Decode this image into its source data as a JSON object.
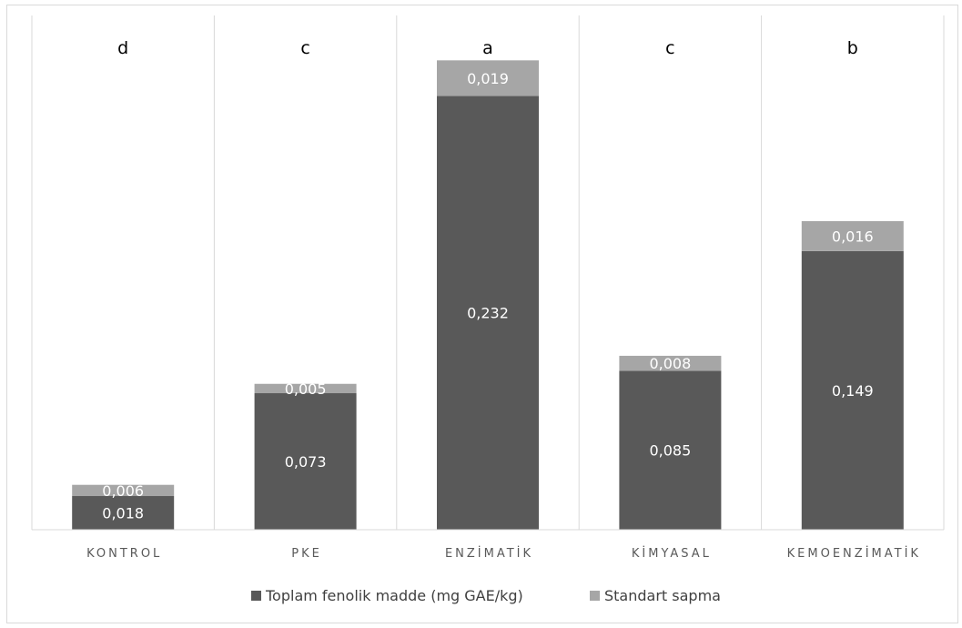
{
  "chart_data": {
    "type": "bar",
    "stacked": true,
    "categories": [
      "KONTROL",
      "PKE",
      "ENZİMATİK",
      "KİMYASAL",
      "KEMOENZİMATİK"
    ],
    "group_letters": [
      "d",
      "c",
      "a",
      "c",
      "b"
    ],
    "series": [
      {
        "name": "Toplam fenolik madde (mg GAE/kg)",
        "values": [
          0.018,
          0.073,
          0.232,
          0.085,
          0.149
        ],
        "labels": [
          "0,018",
          "0,073",
          "0,232",
          "0,085",
          "0,149"
        ],
        "color": "#595959"
      },
      {
        "name": "Standart sapma",
        "values": [
          0.006,
          0.005,
          0.019,
          0.008,
          0.016
        ],
        "labels": [
          "0,006",
          "0,005",
          "0,019",
          "0,008",
          "0,016"
        ],
        "color": "#a6a6a6"
      }
    ],
    "ylim": [
      0,
      0.275
    ],
    "grid": "vertical-category-separators",
    "legend_position": "bottom"
  }
}
